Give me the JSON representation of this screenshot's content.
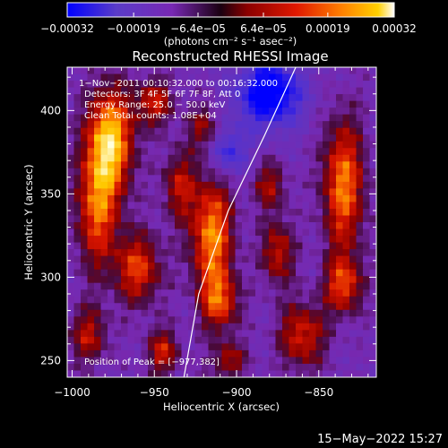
{
  "chart_data": {
    "type": "heatmap",
    "title": "Reconstructed RHESSI Image",
    "xlabel": "Heliocentric X (arcsec)",
    "ylabel": "Heliocentric Y (arcsec)",
    "xlim": [
      -1003,
      -815
    ],
    "ylim": [
      240,
      426
    ],
    "x_ticks": [
      -1000,
      -950,
      -900,
      -850
    ],
    "x_tick_labels": [
      "−1000",
      "−950",
      "−900",
      "−850"
    ],
    "y_ticks": [
      250,
      300,
      350,
      400
    ],
    "y_tick_labels": [
      "250",
      "300",
      "350",
      "400"
    ],
    "colorbar": {
      "range": [
        -0.00032,
        0.00032
      ],
      "ticks": [
        -0.00032,
        -0.00019,
        -6.4e-05,
        6.4e-05,
        0.00019,
        0.00032
      ],
      "tick_labels": [
        "−0.00032",
        "−0.00019",
        "−6.4e−05",
        "6.4e−05",
        "0.00019",
        "0.00032"
      ],
      "unit_label": "(photons cm⁻² s⁻¹ asec⁻²)",
      "colors": [
        "#0000ff",
        "#5a3cc8",
        "#7828b4",
        "#000000",
        "#8b0000",
        "#e01800",
        "#ff8000",
        "#ffd000",
        "#ffffff"
      ]
    },
    "annotations": [
      "1−Nov−2011 00:10:32.000 to 00:16:32.000",
      "Detectors: 3F 4F 5F 6F 7F 8F, Att 0",
      "Energy Range: 25.0 − 50.0 keV",
      "Clean   Total counts: 1.08E+04"
    ],
    "peak_label": "Position of Peak = [−977,382]",
    "peak": [
      -977,
      382
    ],
    "limb_curve": [
      [
        -932,
        240
      ],
      [
        -923,
        290
      ],
      [
        -905,
        340
      ],
      [
        -883,
        385
      ],
      [
        -864,
        426
      ]
    ],
    "hot_spots": [
      {
        "x": -977,
        "y": 382,
        "amp": 1.0,
        "sx": 10,
        "sy": 22
      },
      {
        "x": -985,
        "y": 340,
        "amp": 0.7,
        "sx": 9,
        "sy": 25
      },
      {
        "x": -960,
        "y": 305,
        "amp": 0.65,
        "sx": 10,
        "sy": 15
      },
      {
        "x": -950,
        "y": 405,
        "amp": 0.55,
        "sx": 8,
        "sy": 10
      },
      {
        "x": -915,
        "y": 325,
        "amp": 0.85,
        "sx": 9,
        "sy": 25
      },
      {
        "x": -935,
        "y": 355,
        "amp": 0.5,
        "sx": 7,
        "sy": 15
      },
      {
        "x": -910,
        "y": 285,
        "amp": 0.6,
        "sx": 8,
        "sy": 12
      },
      {
        "x": -875,
        "y": 315,
        "amp": 0.55,
        "sx": 7,
        "sy": 14
      },
      {
        "x": -835,
        "y": 355,
        "amp": 0.8,
        "sx": 9,
        "sy": 28
      },
      {
        "x": -860,
        "y": 265,
        "amp": 0.6,
        "sx": 10,
        "sy": 14
      },
      {
        "x": -835,
        "y": 295,
        "amp": 0.65,
        "sx": 8,
        "sy": 12
      },
      {
        "x": -920,
        "y": 390,
        "amp": 0.4,
        "sx": 7,
        "sy": 10
      },
      {
        "x": -990,
        "y": 265,
        "amp": 0.5,
        "sx": 8,
        "sy": 12
      },
      {
        "x": -945,
        "y": 255,
        "amp": 0.55,
        "sx": 7,
        "sy": 10
      },
      {
        "x": -905,
        "y": 250,
        "amp": 0.45,
        "sx": 8,
        "sy": 8
      },
      {
        "x": -880,
        "y": 355,
        "amp": 0.45,
        "sx": 7,
        "sy": 10
      }
    ],
    "cold_spots": [
      {
        "x": -880,
        "y": 410,
        "amp": 0.9,
        "sx": 14,
        "sy": 14
      },
      {
        "x": -905,
        "y": 375,
        "amp": 0.55,
        "sx": 8,
        "sy": 10
      }
    ]
  },
  "footer": {
    "timestamp": "15−May−2022 15:27"
  }
}
